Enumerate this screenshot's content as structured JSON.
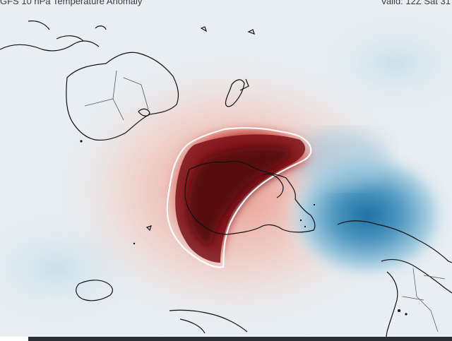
{
  "header": {
    "title": "GFS 10 hPa Temperature Anomaly",
    "valid": "Valid: 12Z Sat 31"
  },
  "colors": {
    "background": "#e8eef2",
    "warm_core": "#5a0a12",
    "warm_mid": "#b3262a",
    "warm_outer": "#e58d80",
    "warm_faint": "#f2c9c0",
    "cold_core": "#1f73a6",
    "cold_outer": "#9fc9de",
    "contour": "#ffffff",
    "coastline": "#111111"
  },
  "layers": {
    "field": "10 hPa temperature anomaly (shaded)",
    "contour_highlight": "white outline around strongest warm anomaly",
    "basemap": "coastlines and borders (southern hemisphere polar view: Antarctica, Australia, New Zealand, South America)"
  }
}
